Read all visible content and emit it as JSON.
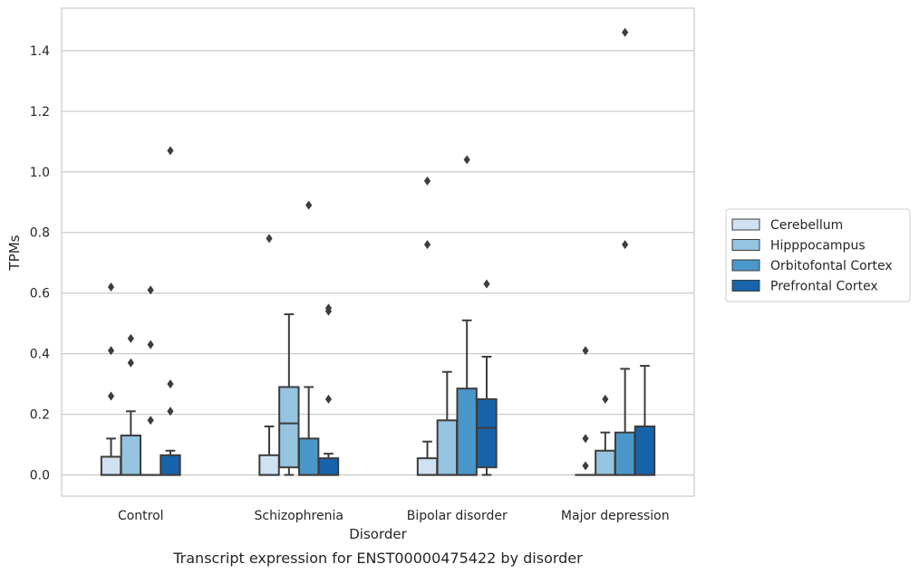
{
  "caption": "Transcript expression for ENST00000475422 by disorder",
  "chart_data": {
    "type": "box",
    "xlabel": "Disorder",
    "ylabel": "TPMs",
    "ylim": [
      -0.07,
      1.54
    ],
    "yticks": [
      0.0,
      0.2,
      0.4,
      0.6,
      0.8,
      1.0,
      1.2,
      1.4
    ],
    "ytick_labels": [
      "0.0",
      "0.2",
      "0.4",
      "0.6",
      "0.8",
      "1.0",
      "1.2",
      "1.4"
    ],
    "grid": "horizontal",
    "legend_position": "right",
    "categories": [
      "Control",
      "Schizophrenia",
      "Bipolar disorder",
      "Major depression"
    ],
    "series": [
      {
        "name": "Cerebellum",
        "color": "#d0e1f2",
        "boxes": [
          {
            "q1": 0.0,
            "median": 0.0,
            "q3": 0.06,
            "whisker_low": 0.0,
            "whisker_high": 0.12,
            "outliers": [
              0.26,
              0.41,
              0.62
            ]
          },
          {
            "q1": 0.0,
            "median": 0.0,
            "q3": 0.065,
            "whisker_low": 0.0,
            "whisker_high": 0.16,
            "outliers": [
              0.78
            ]
          },
          {
            "q1": 0.0,
            "median": 0.0,
            "q3": 0.055,
            "whisker_low": 0.0,
            "whisker_high": 0.11,
            "outliers": [
              0.76,
              0.97
            ]
          },
          {
            "q1": 0.0,
            "median": 0.0,
            "q3": 0.0,
            "whisker_low": 0.0,
            "whisker_high": 0.0,
            "outliers": [
              0.03,
              0.12,
              0.41
            ]
          }
        ]
      },
      {
        "name": "Hipppocampus",
        "color": "#94c4df",
        "boxes": [
          {
            "q1": 0.0,
            "median": 0.0,
            "q3": 0.13,
            "whisker_low": 0.0,
            "whisker_high": 0.21,
            "outliers": [
              0.37,
              0.45
            ]
          },
          {
            "q1": 0.025,
            "median": 0.17,
            "q3": 0.29,
            "whisker_low": 0.0,
            "whisker_high": 0.53,
            "outliers": []
          },
          {
            "q1": 0.0,
            "median": 0.0,
            "q3": 0.18,
            "whisker_low": 0.0,
            "whisker_high": 0.34,
            "outliers": []
          },
          {
            "q1": 0.0,
            "median": 0.0,
            "q3": 0.08,
            "whisker_low": 0.0,
            "whisker_high": 0.14,
            "outliers": [
              0.25
            ]
          }
        ]
      },
      {
        "name": "Orbitofontal Cortex",
        "color": "#4a98c9",
        "boxes": [
          {
            "q1": 0.0,
            "median": 0.0,
            "q3": 0.0,
            "whisker_low": 0.0,
            "whisker_high": 0.0,
            "outliers": [
              0.18,
              0.43,
              0.61
            ]
          },
          {
            "q1": 0.0,
            "median": 0.0,
            "q3": 0.12,
            "whisker_low": 0.0,
            "whisker_high": 0.29,
            "outliers": [
              0.89
            ]
          },
          {
            "q1": 0.0,
            "median": 0.0,
            "q3": 0.285,
            "whisker_low": 0.0,
            "whisker_high": 0.51,
            "outliers": [
              1.04
            ]
          },
          {
            "q1": 0.0,
            "median": 0.0,
            "q3": 0.14,
            "whisker_low": 0.0,
            "whisker_high": 0.35,
            "outliers": [
              0.76,
              1.46
            ]
          }
        ]
      },
      {
        "name": "Prefrontal Cortex",
        "color": "#1764ab",
        "boxes": [
          {
            "q1": 0.0,
            "median": 0.0,
            "q3": 0.065,
            "whisker_low": 0.0,
            "whisker_high": 0.08,
            "outliers": [
              0.21,
              0.3,
              1.07
            ]
          },
          {
            "q1": 0.0,
            "median": 0.0,
            "q3": 0.055,
            "whisker_low": 0.0,
            "whisker_high": 0.07,
            "outliers": [
              0.25,
              0.54,
              0.55
            ]
          },
          {
            "q1": 0.025,
            "median": 0.155,
            "q3": 0.25,
            "whisker_low": 0.0,
            "whisker_high": 0.39,
            "outliers": [
              0.63
            ]
          },
          {
            "q1": 0.0,
            "median": 0.0,
            "q3": 0.16,
            "whisker_low": 0.0,
            "whisker_high": 0.36,
            "outliers": []
          }
        ]
      }
    ]
  }
}
